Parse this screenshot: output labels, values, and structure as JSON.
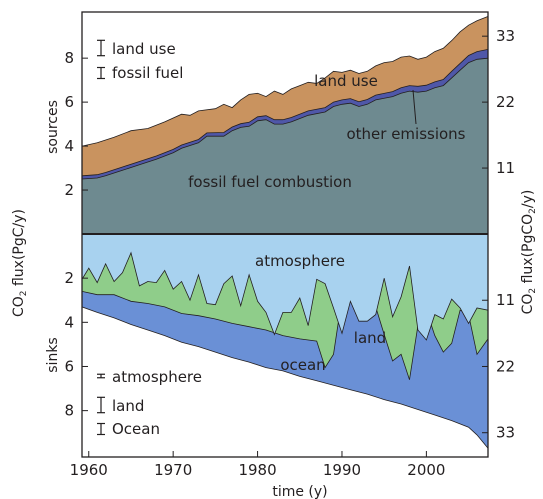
{
  "chart_data": [
    {
      "panel": "sources",
      "type": "area",
      "stacked": true,
      "x_range": [
        1959.2,
        2007.3
      ],
      "ylim": [
        0,
        10.1
      ],
      "ylabel": "sources",
      "left_ticks": [
        2,
        4,
        6,
        8
      ],
      "right_ticks": [
        11,
        22,
        33
      ],
      "series": [
        {
          "name": "fossil fuel combustion",
          "color": "#6e8a90",
          "points": [
            [
              1959.2,
              2.5
            ],
            [
              1961,
              2.55
            ],
            [
              1962,
              2.65
            ],
            [
              1964,
              2.9
            ],
            [
              1966,
              3.15
            ],
            [
              1968,
              3.4
            ],
            [
              1970,
              3.7
            ],
            [
              1971,
              3.9
            ],
            [
              1973,
              4.15
            ],
            [
              1974,
              4.45
            ],
            [
              1976,
              4.45
            ],
            [
              1977,
              4.7
            ],
            [
              1978,
              4.85
            ],
            [
              1979,
              4.9
            ],
            [
              1980,
              5.15
            ],
            [
              1981,
              5.2
            ],
            [
              1982,
              5.0
            ],
            [
              1983,
              5.0
            ],
            [
              1984,
              5.1
            ],
            [
              1986,
              5.4
            ],
            [
              1988,
              5.55
            ],
            [
              1989,
              5.8
            ],
            [
              1990,
              5.9
            ],
            [
              1991,
              5.95
            ],
            [
              1992,
              5.8
            ],
            [
              1993,
              5.9
            ],
            [
              1994,
              6.1
            ],
            [
              1996,
              6.25
            ],
            [
              1997,
              6.4
            ],
            [
              1998,
              6.5
            ],
            [
              1999,
              6.45
            ],
            [
              2000,
              6.5
            ],
            [
              2001,
              6.65
            ],
            [
              2002,
              6.75
            ],
            [
              2003,
              7.1
            ],
            [
              2004,
              7.45
            ],
            [
              2005,
              7.8
            ],
            [
              2006,
              7.95
            ],
            [
              2007.3,
              8.0
            ]
          ]
        },
        {
          "name": "other emissions",
          "color": "#4f57a8",
          "points": [
            [
              1959.2,
              2.65
            ],
            [
              1961,
              2.7
            ],
            [
              1962,
              2.8
            ],
            [
              1964,
              3.05
            ],
            [
              1966,
              3.3
            ],
            [
              1968,
              3.55
            ],
            [
              1970,
              3.85
            ],
            [
              1971,
              4.05
            ],
            [
              1973,
              4.3
            ],
            [
              1974,
              4.6
            ],
            [
              1976,
              4.62
            ],
            [
              1977,
              4.87
            ],
            [
              1978,
              5.02
            ],
            [
              1979,
              5.08
            ],
            [
              1980,
              5.33
            ],
            [
              1981,
              5.38
            ],
            [
              1982,
              5.2
            ],
            [
              1983,
              5.2
            ],
            [
              1984,
              5.3
            ],
            [
              1986,
              5.6
            ],
            [
              1988,
              5.75
            ],
            [
              1989,
              6.0
            ],
            [
              1990,
              6.1
            ],
            [
              1991,
              6.16
            ],
            [
              1992,
              6.02
            ],
            [
              1993,
              6.12
            ],
            [
              1994,
              6.32
            ],
            [
              1996,
              6.48
            ],
            [
              1997,
              6.65
            ],
            [
              1998,
              6.75
            ],
            [
              1999,
              6.72
            ],
            [
              2000,
              6.77
            ],
            [
              2001,
              6.92
            ],
            [
              2002,
              7.03
            ],
            [
              2003,
              7.4
            ],
            [
              2004,
              7.76
            ],
            [
              2005,
              8.12
            ],
            [
              2006,
              8.3
            ],
            [
              2007.3,
              8.4
            ]
          ]
        },
        {
          "name": "land use",
          "color": "#c9935f",
          "points": [
            [
              1959.2,
              4.0
            ],
            [
              1961,
              4.15
            ],
            [
              1963,
              4.4
            ],
            [
              1965,
              4.7
            ],
            [
              1967,
              4.8
            ],
            [
              1969,
              5.1
            ],
            [
              1971,
              5.45
            ],
            [
              1972,
              5.4
            ],
            [
              1973,
              5.6
            ],
            [
              1975,
              5.7
            ],
            [
              1976,
              5.9
            ],
            [
              1977,
              5.75
            ],
            [
              1978,
              6.1
            ],
            [
              1979,
              6.35
            ],
            [
              1980,
              6.4
            ],
            [
              1981,
              6.25
            ],
            [
              1982,
              6.5
            ],
            [
              1983,
              6.35
            ],
            [
              1984,
              6.6
            ],
            [
              1985,
              6.75
            ],
            [
              1986,
              6.9
            ],
            [
              1987,
              6.85
            ],
            [
              1988,
              7.1
            ],
            [
              1989,
              7.4
            ],
            [
              1990,
              7.35
            ],
            [
              1991,
              7.45
            ],
            [
              1992,
              7.3
            ],
            [
              1993,
              7.4
            ],
            [
              1994,
              7.65
            ],
            [
              1995,
              7.8
            ],
            [
              1996,
              7.85
            ],
            [
              1997,
              8.05
            ],
            [
              1998,
              8.1
            ],
            [
              1999,
              7.95
            ],
            [
              2000,
              8.05
            ],
            [
              2001,
              8.3
            ],
            [
              2002,
              8.45
            ],
            [
              2003,
              8.8
            ],
            [
              2004,
              9.2
            ],
            [
              2005,
              9.5
            ],
            [
              2006,
              9.7
            ],
            [
              2007.3,
              9.9
            ]
          ]
        }
      ],
      "annotations": [
        "land use",
        "other emissions",
        "fossil fuel combustion"
      ],
      "uncertainty_legend": [
        {
          "label": "land use",
          "half_range": 0.35
        },
        {
          "label": "fossil fuel",
          "half_range": 0.25
        }
      ]
    },
    {
      "panel": "sinks",
      "type": "area",
      "stacked": true,
      "inverted_y": true,
      "x_range": [
        1959.2,
        2007.3
      ],
      "ylim": [
        0,
        10.1
      ],
      "ylabel": "sinks",
      "left_ticks": [
        2,
        4,
        6,
        8
      ],
      "right_ticks": [
        11,
        22,
        33
      ],
      "series": [
        {
          "name": "atmosphere",
          "color": "#a8d2ef",
          "points": [
            [
              1959.2,
              2.05
            ],
            [
              1960,
              1.55
            ],
            [
              1961,
              2.2
            ],
            [
              1962,
              1.35
            ],
            [
              1963,
              2.15
            ],
            [
              1964,
              1.75
            ],
            [
              1965,
              0.85
            ],
            [
              1966,
              2.35
            ],
            [
              1967,
              2.15
            ],
            [
              1968,
              2.2
            ],
            [
              1969,
              1.65
            ],
            [
              1970,
              2.5
            ],
            [
              1971,
              2.15
            ],
            [
              1972,
              3.0
            ],
            [
              1973,
              1.85
            ],
            [
              1974,
              3.15
            ],
            [
              1975,
              3.2
            ],
            [
              1976,
              2.25
            ],
            [
              1977,
              1.9
            ],
            [
              1978,
              3.25
            ],
            [
              1979,
              1.85
            ],
            [
              1980,
              3.05
            ],
            [
              1981,
              3.55
            ],
            [
              1982,
              4.55
            ],
            [
              1983,
              3.55
            ],
            [
              1984,
              3.55
            ],
            [
              1985,
              2.9
            ],
            [
              1986,
              4.15
            ],
            [
              1987,
              2.05
            ],
            [
              1988,
              2.25
            ],
            [
              1989,
              3.35
            ],
            [
              1990,
              4.5
            ],
            [
              1991,
              3.05
            ],
            [
              1992,
              3.95
            ],
            [
              1993,
              3.95
            ],
            [
              1994,
              3.65
            ],
            [
              1995,
              2.0
            ],
            [
              1996,
              3.75
            ],
            [
              1997,
              2.85
            ],
            [
              1998,
              1.45
            ],
            [
              1999,
              4.35
            ],
            [
              2000,
              4.8
            ],
            [
              2001,
              3.65
            ],
            [
              2002,
              3.85
            ],
            [
              2003,
              2.95
            ],
            [
              2004,
              3.35
            ],
            [
              2005,
              4.05
            ],
            [
              2006,
              3.35
            ],
            [
              2007.3,
              3.45
            ]
          ]
        },
        {
          "name": "land",
          "color": "#8fcd8a",
          "points": [
            [
              1959.2,
              2.6
            ],
            [
              1961,
              2.75
            ],
            [
              1963,
              2.75
            ],
            [
              1965,
              3.05
            ],
            [
              1967,
              3.15
            ],
            [
              1969,
              3.3
            ],
            [
              1971,
              3.6
            ],
            [
              1973,
              3.7
            ],
            [
              1975,
              3.85
            ],
            [
              1977,
              4.05
            ],
            [
              1979,
              4.2
            ],
            [
              1981,
              4.35
            ],
            [
              1983,
              4.6
            ],
            [
              1985,
              4.75
            ],
            [
              1987,
              4.85
            ],
            [
              1988,
              6.05
            ],
            [
              1989,
              5.45
            ],
            [
              1990,
              2.9
            ],
            [
              1991,
              2.3
            ],
            [
              1992,
              1.55
            ],
            [
              1993,
              2.35
            ],
            [
              1994,
              3.3
            ],
            [
              1995,
              4.55
            ],
            [
              1996,
              5.75
            ],
            [
              1997,
              5.45
            ],
            [
              1998,
              6.6
            ],
            [
              1999,
              4.15
            ],
            [
              2000,
              3.45
            ],
            [
              2001,
              4.6
            ],
            [
              2002,
              5.35
            ],
            [
              2003,
              4.95
            ],
            [
              2004,
              3.45
            ],
            [
              2005,
              3.65
            ],
            [
              2006,
              5.45
            ],
            [
              2007.3,
              4.75
            ]
          ]
        },
        {
          "name": "ocean",
          "color": "#6a90d6",
          "points": [
            [
              1959.2,
              3.3
            ],
            [
              1961,
              3.55
            ],
            [
              1963,
              3.8
            ],
            [
              1965,
              4.1
            ],
            [
              1967,
              4.35
            ],
            [
              1969,
              4.6
            ],
            [
              1971,
              4.9
            ],
            [
              1973,
              5.1
            ],
            [
              1975,
              5.35
            ],
            [
              1977,
              5.6
            ],
            [
              1979,
              5.8
            ],
            [
              1981,
              6.05
            ],
            [
              1983,
              6.2
            ],
            [
              1985,
              6.45
            ],
            [
              1987,
              6.65
            ],
            [
              1989,
              6.85
            ],
            [
              1991,
              7.05
            ],
            [
              1993,
              7.25
            ],
            [
              1995,
              7.5
            ],
            [
              1997,
              7.7
            ],
            [
              1999,
              7.95
            ],
            [
              2001,
              8.2
            ],
            [
              2003,
              8.45
            ],
            [
              2005,
              8.75
            ],
            [
              2006,
              9.1
            ],
            [
              2007.3,
              9.7
            ]
          ]
        }
      ],
      "annotations": [
        "atmosphere",
        "land",
        "ocean"
      ],
      "uncertainty_legend": [
        {
          "label": "atmosphere",
          "half_range": 0.08
        },
        {
          "label": "land",
          "half_range": 0.35
        },
        {
          "label": "Ocean",
          "half_range": 0.25
        }
      ]
    }
  ],
  "x_axis": {
    "label": "time (y)",
    "ticks": [
      1960,
      1970,
      1980,
      1990,
      2000
    ]
  },
  "left_axis_label": {
    "prefix": "CO",
    "sub": "2",
    "suffix": " flux(PgC/y)"
  },
  "right_axis_label": {
    "prefix": "CO",
    "sub": "2",
    "suffix": " flux(PgCO",
    "sub2": "2",
    "suffix2": "/y)"
  }
}
